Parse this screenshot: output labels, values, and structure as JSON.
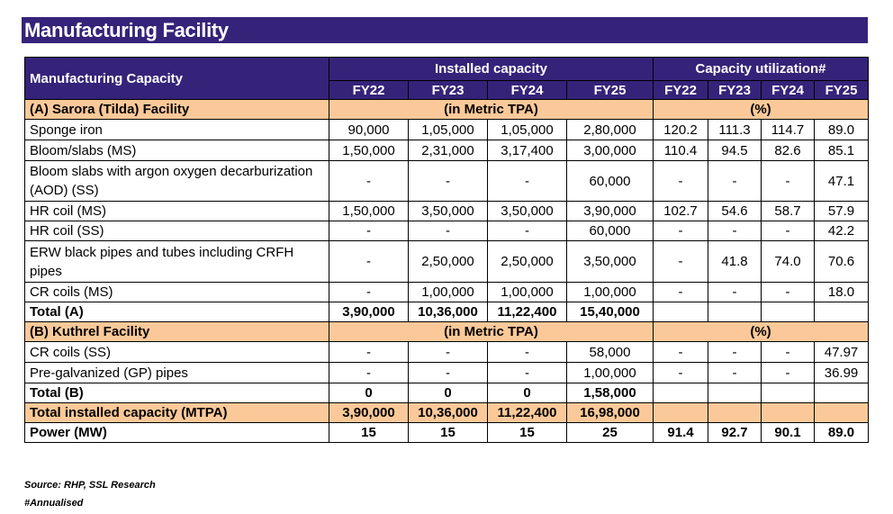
{
  "title": "Manufacturing Facility",
  "header": {
    "row_label": "Manufacturing Capacity",
    "installed": "Installed capacity",
    "utilization": "Capacity utilization#",
    "years": [
      "FY22",
      "FY23",
      "FY24",
      "FY25"
    ]
  },
  "sections": {
    "a": {
      "label": "(A) Sarora (Tilda) Facility",
      "unit_installed": "(in Metric TPA)",
      "unit_util": "(%)"
    },
    "b": {
      "label": "(B) Kuthrel Facility",
      "unit_installed": "(in Metric TPA)",
      "unit_util": "(%)"
    }
  },
  "rows_a": [
    {
      "label": "Sponge iron",
      "cap": [
        "90,000",
        "1,05,000",
        "1,05,000",
        "2,80,000"
      ],
      "util": [
        "120.2",
        "111.3",
        "114.7",
        "89.0"
      ]
    },
    {
      "label": "Bloom/slabs (MS)",
      "cap": [
        "1,50,000",
        "2,31,000",
        "3,17,400",
        "3,00,000"
      ],
      "util": [
        "110.4",
        "94.5",
        "82.6",
        "85.1"
      ]
    },
    {
      "label": "Bloom slabs with argon oxygen decarburization (AOD) (SS)",
      "cap": [
        "-",
        "-",
        "-",
        "60,000"
      ],
      "util": [
        "-",
        "-",
        "-",
        "47.1"
      ]
    },
    {
      "label": "HR coil (MS)",
      "cap": [
        "1,50,000",
        "3,50,000",
        "3,50,000",
        "3,90,000"
      ],
      "util": [
        "102.7",
        "54.6",
        "58.7",
        "57.9"
      ]
    },
    {
      "label": "HR coil (SS)",
      "cap": [
        "-",
        "-",
        "-",
        "60,000"
      ],
      "util": [
        "-",
        "-",
        "-",
        "42.2"
      ]
    },
    {
      "label": "ERW black pipes and tubes including CRFH pipes",
      "cap": [
        "-",
        "2,50,000",
        "2,50,000",
        "3,50,000"
      ],
      "util": [
        "-",
        "41.8",
        "74.0",
        "70.6"
      ]
    },
    {
      "label": "CR coils (MS)",
      "cap": [
        "-",
        "1,00,000",
        "1,00,000",
        "1,00,000"
      ],
      "util": [
        "-",
        "-",
        "-",
        "18.0"
      ]
    }
  ],
  "total_a": {
    "label": "Total (A)",
    "cap": [
      "3,90,000",
      "10,36,000",
      "11,22,400",
      "15,40,000"
    ]
  },
  "rows_b": [
    {
      "label": "CR coils (SS)",
      "cap": [
        "-",
        "-",
        "-",
        "58,000"
      ],
      "util": [
        "-",
        "-",
        "-",
        "47.97"
      ]
    },
    {
      "label": "Pre-galvanized (GP) pipes",
      "cap": [
        "-",
        "-",
        "-",
        "1,00,000"
      ],
      "util": [
        "-",
        "-",
        "-",
        "36.99"
      ]
    }
  ],
  "total_b": {
    "label": "Total (B)",
    "cap": [
      "0",
      "0",
      "0",
      "1,58,000"
    ]
  },
  "total_installed": {
    "label": "Total installed capacity (MTPA)",
    "cap": [
      "3,90,000",
      "10,36,000",
      "11,22,400",
      "16,98,000"
    ]
  },
  "power": {
    "label": "Power (MW)",
    "cap": [
      "15",
      "15",
      "15",
      "25"
    ],
    "util": [
      "91.4",
      "92.7",
      "90.1",
      "89.0"
    ]
  },
  "notes": [
    "Source: RHP, SSL Research",
    "#Annualised"
  ],
  "colors": {
    "header_bg": "#35237a",
    "section_bg": "#fbc999"
  }
}
